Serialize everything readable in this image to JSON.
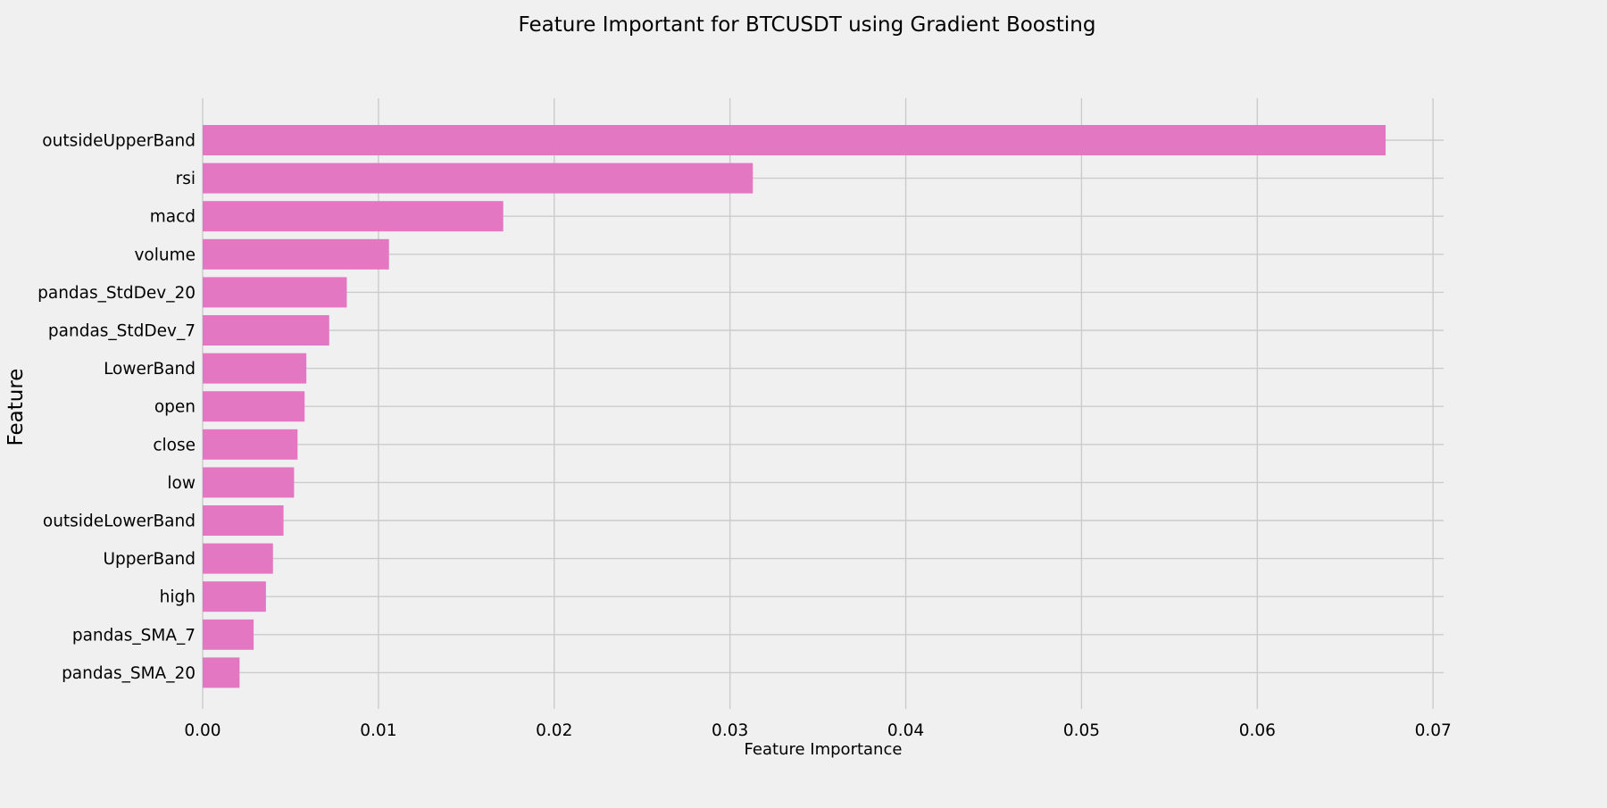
{
  "chart_data": {
    "type": "bar",
    "orientation": "horizontal",
    "title": "Feature Important for BTCUSDT using Gradient Boosting",
    "xlabel": "Feature Importance",
    "ylabel": "Feature",
    "categories": [
      "outsideUpperBand",
      "rsi",
      "macd",
      "volume",
      "pandas_StdDev_20",
      "pandas_StdDev_7",
      "LowerBand",
      "open",
      "close",
      "low",
      "outsideLowerBand",
      "UpperBand",
      "high",
      "pandas_SMA_7",
      "pandas_SMA_20"
    ],
    "values": [
      0.0673,
      0.0313,
      0.0171,
      0.0106,
      0.0082,
      0.0072,
      0.0059,
      0.0058,
      0.0054,
      0.0052,
      0.0046,
      0.004,
      0.0036,
      0.0029,
      0.0021
    ],
    "xlim": [
      0.0,
      0.0706
    ],
    "xticks": [
      "0.00",
      "0.01",
      "0.02",
      "0.03",
      "0.04",
      "0.05",
      "0.06",
      "0.07"
    ],
    "xtick_values": [
      0.0,
      0.01,
      0.02,
      0.03,
      0.04,
      0.05,
      0.06,
      0.07
    ],
    "grid": true,
    "legend": false,
    "bar_color": "#e377c2",
    "grid_color": "#cbcbcb",
    "background_color": "#f0f0f0"
  }
}
